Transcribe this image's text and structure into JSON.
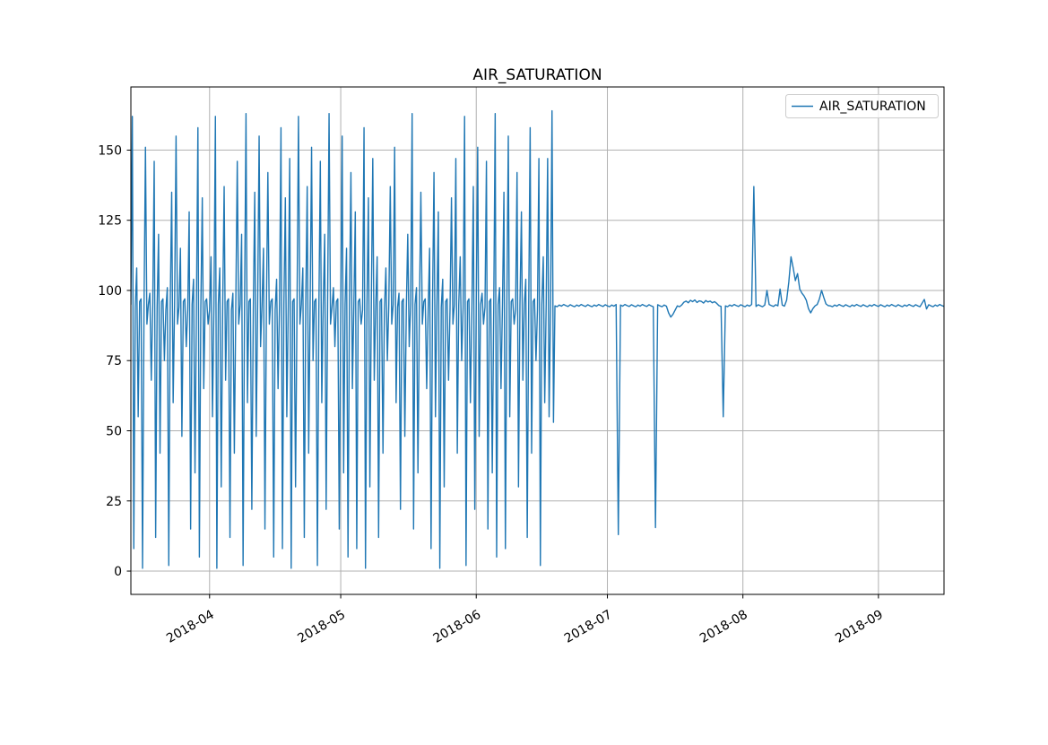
{
  "chart_data": {
    "type": "line",
    "title": "AIR_SATURATION",
    "grid": true,
    "background": "#ffffff",
    "grid_color": "#b0b0b0",
    "spine_color": "#000000",
    "legend": {
      "position": "upper right",
      "entries": [
        {
          "label": "AIR_SATURATION",
          "color": "#1f77b4"
        }
      ]
    },
    "x_axis": {
      "unit": "days from first sample (2018-03 to 2018-09)",
      "range": [
        0,
        186
      ],
      "ticks": [
        {
          "t": 18,
          "label": "2018-04"
        },
        {
          "t": 48,
          "label": "2018-05"
        },
        {
          "t": 79,
          "label": "2018-06"
        },
        {
          "t": 109,
          "label": "2018-07"
        },
        {
          "t": 140,
          "label": "2018-08"
        },
        {
          "t": 171,
          "label": "2018-09"
        }
      ]
    },
    "y_axis": {
      "range": [
        -8.3,
        172.5
      ],
      "ticks": [
        0,
        25,
        50,
        75,
        100,
        125,
        150
      ]
    },
    "series": [
      {
        "name": "AIR_SATURATION",
        "color": "#1f77b4",
        "line_width": 1.4,
        "segments": [
          {
            "t0": 0,
            "dt": 0.33333,
            "values": [
              95,
              162,
              8,
              94,
              108,
              55,
              96,
              97,
              1,
              93,
              151,
              88,
              95,
              99,
              68,
              95,
              146,
              12,
              94,
              120,
              42,
              96,
              97,
              75,
              93,
              101,
              2,
              95,
              135,
              60,
              95,
              155,
              88,
              94,
              115,
              48,
              96,
              97,
              80,
              93,
              128,
              15,
              95,
              104,
              35,
              95,
              158,
              5,
              94,
              133,
              65,
              96,
              97,
              88,
              93,
              112,
              55,
              95,
              162,
              1,
              95,
              108,
              30,
              94,
              137,
              68,
              96,
              97,
              12,
              93,
              99,
              42,
              95,
              146,
              88,
              95,
              120,
              2,
              94,
              163,
              60,
              96,
              97,
              22,
              93,
              135,
              48,
              95,
              155,
              80,
              95,
              115,
              15,
              94,
              142,
              88,
              96,
              97,
              5,
              93,
              104,
              65,
              95,
              158,
              8,
              95,
              133,
              55,
              94,
              147,
              1,
              96,
              97,
              30,
              93,
              162,
              88,
              95,
              108,
              12,
              95,
              137,
              42,
              94,
              151,
              75,
              96,
              97,
              2,
              93,
              146,
              60,
              95,
              120,
              22,
              95,
              163,
              88,
              94,
              101,
              80,
              96,
              97,
              15,
              93,
              155,
              35,
              95,
              115,
              5,
              95,
              142,
              65,
              94,
              128,
              8,
              96,
              97,
              88,
              93,
              158,
              1,
              95,
              133,
              30,
              95,
              147,
              68,
              94,
              112,
              12,
              96,
              97,
              42,
              93,
              108,
              75,
              95,
              137,
              88,
              95,
              151,
              60,
              94,
              99,
              22,
              96,
              97,
              48,
              93,
              120,
              80,
              95,
              163,
              15,
              95,
              101,
              35,
              94,
              135,
              88,
              96,
              97,
              65,
              93,
              115,
              8,
              95,
              142,
              55,
              95,
              128,
              1,
              94,
              104,
              30,
              96,
              97,
              68,
              93,
              133,
              88,
              95,
              147,
              42,
              95,
              112,
              75,
              94,
              162,
              2,
              96,
              97,
              60,
              93,
              137,
              22,
              95,
              151,
              48,
              95,
              99,
              88,
              94,
              146,
              15,
              96,
              97,
              35,
              93,
              163,
              5,
              95,
              101,
              65,
              95,
              135,
              8,
              94,
              155,
              55,
              96,
              97,
              88,
              93,
              142,
              30,
              95,
              128,
              68,
              95,
              104,
              12,
              94,
              158,
              42,
              96,
              97,
              75,
              93,
              147,
              2,
              95,
              112,
              60,
              95,
              147,
              55,
              94,
              164,
              53
            ]
          },
          {
            "t0": 97,
            "dt": 0.5,
            "values": [
              94.5,
              94.2,
              94.8,
              94.4,
              95.0,
              94.6,
              94.3,
              94.9,
              94.5,
              94.2,
              94.8,
              94.4,
              95.0,
              94.6,
              94.3,
              94.9,
              94.5,
              94.2,
              94.8,
              94.4,
              95.0,
              94.6,
              94.3,
              94.9,
              94.5,
              94.2,
              94.8,
              94.4,
              95.0,
              13,
              94.8,
              94.4,
              95.0,
              94.6,
              94.3,
              94.9,
              94.5,
              94.2,
              94.8,
              94.4,
              95.0,
              94.6,
              94.3,
              94.9,
              94.5,
              94.2,
              15.5,
              94.9,
              94.5,
              94.2,
              94.8,
              94.4,
              92,
              90.5,
              91.5,
              93,
              94.5,
              94.2,
              94.8,
              95.8,
              96.2,
              95.6,
              96.5,
              96.0,
              96.6,
              95.7,
              96.3,
              96.1,
              95.5,
              96.4,
              95.9,
              96.2,
              95.6,
              96.0,
              95.4,
              94.6,
              94.3,
              55,
              94.5,
              94.2,
              94.8,
              94.4,
              95.0,
              94.6,
              94.3,
              94.9,
              94.5,
              94.2,
              94.8,
              94.4,
              95.0,
              137,
              94.3,
              94.9,
              94.5,
              94.2,
              94.8,
              100,
              95.0,
              94.6,
              94.3,
              94.9,
              94.5,
              100.5,
              94.8,
              94.4,
              96.5,
              103,
              112,
              108,
              103.5,
              106,
              100.5,
              99,
              98,
              96.5,
              93.5,
              92,
              93.5,
              94.5,
              95,
              97,
              100,
              97.5,
              95.2,
              94.6,
              94.5,
              94.2,
              94.8,
              94.4,
              95.0,
              94.6,
              94.3,
              94.9,
              94.5,
              94.2,
              94.8,
              94.4,
              95.0,
              94.6,
              94.3,
              94.9,
              94.5,
              94.2,
              94.8,
              94.4,
              95.0,
              94.6,
              94.3,
              94.9,
              94.5,
              94.2,
              94.8,
              94.4,
              95.0,
              94.6,
              94.3,
              94.9,
              94.5,
              94.2,
              94.8,
              94.4,
              95.0,
              94.6,
              94.3,
              94.9,
              94.5,
              94.2,
              95.5,
              96.8,
              93.4,
              94.9,
              94.5,
              94.2,
              94.8,
              94.4,
              95.0,
              94.6,
              94.3
            ]
          }
        ]
      }
    ]
  }
}
